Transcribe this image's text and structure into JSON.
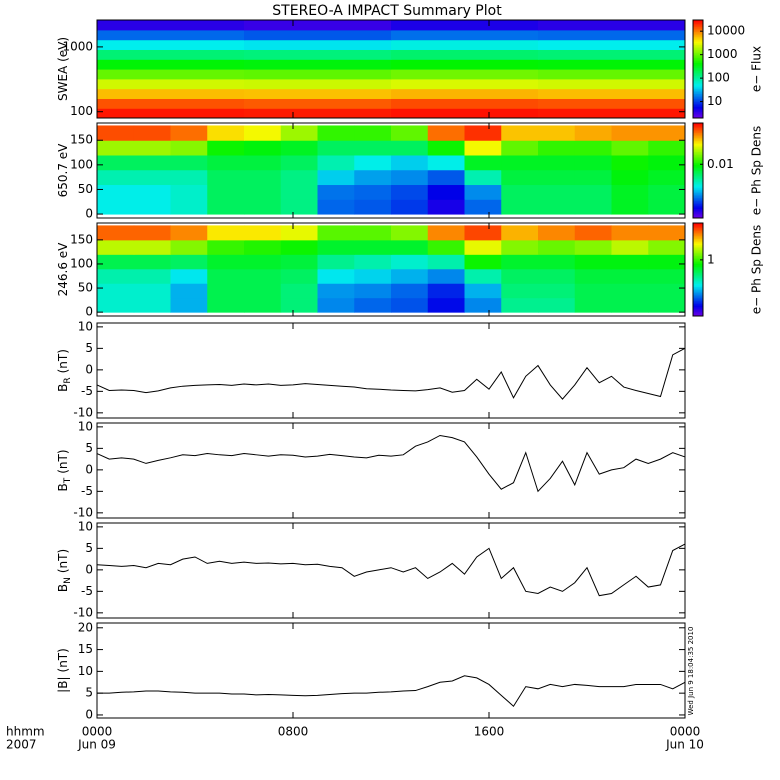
{
  "title": "STEREO-A IMPACT Summary Plot",
  "chart_data": [
    {
      "type": "heatmap",
      "ylabel": "SWEA (eV)",
      "log_y": true,
      "ylim": [
        80,
        2600
      ],
      "yticks": [
        100,
        1000
      ],
      "xlim": [
        0,
        24
      ],
      "xticks": [
        0,
        8,
        16,
        24
      ],
      "x_bins": [
        0,
        6,
        12,
        18,
        24
      ],
      "y_bins": [
        80,
        113,
        160,
        227,
        321,
        455,
        644,
        912,
        1290,
        1830,
        2600
      ],
      "z": [
        [
          25000,
          24000,
          26000,
          25000
        ],
        [
          15000,
          14000,
          16000,
          15000
        ],
        [
          6000,
          5800,
          6500,
          6000
        ],
        [
          2500,
          2400,
          2700,
          2500
        ],
        [
          1000,
          950,
          1100,
          1000
        ],
        [
          400,
          380,
          420,
          400
        ],
        [
          150,
          140,
          160,
          150
        ],
        [
          50,
          45,
          55,
          50
        ],
        [
          15,
          13,
          16,
          15
        ],
        [
          4,
          3.5,
          4.5,
          4
        ]
      ],
      "zlim": [
        2,
        30000
      ],
      "zticks": [
        10,
        100,
        1000,
        10000
      ],
      "log_z": true,
      "colormap": "rainbow",
      "colorbar_label": "e− Flux"
    },
    {
      "type": "heatmap",
      "ylabel": "650.7 eV",
      "log_y": false,
      "ylim": [
        -8,
        185
      ],
      "yticks": [
        0,
        50,
        100,
        150
      ],
      "xlim": [
        0,
        24
      ],
      "xticks": [
        0,
        8,
        16,
        24
      ],
      "x_bins": [
        0,
        1.5,
        3,
        4.5,
        6,
        7.5,
        9,
        10.5,
        12,
        13.5,
        15,
        16.5,
        18,
        19.5,
        21,
        22.5,
        24
      ],
      "y_bins": [
        0,
        30,
        60,
        90,
        120,
        150,
        180
      ],
      "z": [
        [
          0.003,
          0.003,
          0.0035,
          0.006,
          0.006,
          0.005,
          0.0015,
          0.0014,
          0.0012,
          0.0008,
          0.0015,
          0.006,
          0.006,
          0.006,
          0.008,
          0.007
        ],
        [
          0.003,
          0.003,
          0.0035,
          0.006,
          0.006,
          0.005,
          0.0016,
          0.0015,
          0.0013,
          0.0009,
          0.0018,
          0.006,
          0.006,
          0.006,
          0.008,
          0.007
        ],
        [
          0.004,
          0.004,
          0.004,
          0.006,
          0.006,
          0.005,
          0.0025,
          0.002,
          0.0018,
          0.0014,
          0.004,
          0.007,
          0.007,
          0.007,
          0.009,
          0.008
        ],
        [
          0.006,
          0.006,
          0.006,
          0.007,
          0.007,
          0.006,
          0.004,
          0.003,
          0.0025,
          0.003,
          0.008,
          0.008,
          0.008,
          0.008,
          0.01,
          0.009
        ],
        [
          0.02,
          0.02,
          0.018,
          0.01,
          0.009,
          0.008,
          0.006,
          0.006,
          0.006,
          0.01,
          0.03,
          0.015,
          0.012,
          0.012,
          0.015,
          0.012
        ],
        [
          0.07,
          0.07,
          0.06,
          0.035,
          0.03,
          0.02,
          0.012,
          0.012,
          0.015,
          0.06,
          0.08,
          0.04,
          0.04,
          0.045,
          0.05,
          0.05
        ]
      ],
      "zlim": [
        0.0005,
        0.1
      ],
      "zticks": [
        0.01
      ],
      "log_z": true,
      "colormap": "rainbow",
      "colorbar_label": "e− Ph Sp Dens"
    },
    {
      "type": "heatmap",
      "ylabel": "246.6 eV",
      "log_y": false,
      "ylim": [
        -8,
        185
      ],
      "yticks": [
        0,
        50,
        100,
        150
      ],
      "xlim": [
        0,
        24
      ],
      "xticks": [
        0,
        8,
        16,
        24
      ],
      "x_bins": [
        0,
        1.5,
        3,
        4.5,
        6,
        7.5,
        9,
        10.5,
        12,
        13.5,
        15,
        16.5,
        18,
        19.5,
        21,
        22.5,
        24
      ],
      "y_bins": [
        0,
        30,
        60,
        90,
        120,
        150,
        180
      ],
      "z": [
        [
          0.25,
          0.25,
          0.15,
          0.5,
          0.5,
          0.4,
          0.12,
          0.1,
          0.09,
          0.06,
          0.12,
          0.35,
          0.35,
          0.5,
          0.5,
          0.5
        ],
        [
          0.25,
          0.25,
          0.15,
          0.5,
          0.5,
          0.4,
          0.13,
          0.12,
          0.1,
          0.07,
          0.15,
          0.4,
          0.4,
          0.5,
          0.5,
          0.5
        ],
        [
          0.3,
          0.3,
          0.2,
          0.5,
          0.5,
          0.45,
          0.2,
          0.18,
          0.15,
          0.12,
          0.3,
          0.45,
          0.45,
          0.55,
          0.55,
          0.55
        ],
        [
          0.5,
          0.5,
          0.45,
          0.6,
          0.6,
          0.55,
          0.35,
          0.3,
          0.25,
          0.3,
          0.8,
          0.6,
          0.6,
          0.7,
          0.7,
          0.7
        ],
        [
          2,
          2,
          1.5,
          1,
          0.9,
          0.8,
          0.6,
          0.6,
          0.6,
          1,
          2.5,
          1.5,
          1.3,
          1.5,
          2,
          1.5
        ],
        [
          6,
          6,
          5,
          3,
          3,
          2.5,
          1.2,
          1.2,
          1.5,
          5,
          7,
          4,
          5,
          6,
          5,
          5
        ]
      ],
      "zlim": [
        0.03,
        10
      ],
      "zticks": [
        1
      ],
      "log_z": true,
      "colormap": "rainbow",
      "colorbar_label": "e− Ph Sp Dens"
    },
    {
      "type": "line",
      "ylabel": "B",
      "ylabel_sub": "R",
      "ylabel_unit": "(nT)",
      "color": "#000000",
      "ylim": [
        -11.2,
        10.9
      ],
      "yticks": [
        -10,
        -5,
        0,
        5,
        10
      ],
      "xlim": [
        0,
        24
      ],
      "xticks": [
        0,
        8,
        16,
        24
      ],
      "x": [
        0,
        0.5,
        1,
        1.5,
        2,
        2.5,
        3,
        3.5,
        4,
        4.5,
        5,
        5.5,
        6,
        6.5,
        7,
        7.5,
        8,
        8.5,
        9,
        9.5,
        10,
        10.5,
        11,
        11.5,
        12,
        12.5,
        13,
        13.5,
        14,
        14.5,
        15,
        15.5,
        16,
        16.5,
        17,
        17.5,
        18,
        18.5,
        19,
        19.5,
        20,
        20.5,
        21,
        21.5,
        22,
        22.5,
        23,
        23.5,
        24
      ],
      "values": [
        -3.5,
        -4.8,
        -4.7,
        -4.8,
        -5.3,
        -4.9,
        -4.2,
        -3.8,
        -3.6,
        -3.5,
        -3.4,
        -3.6,
        -3.3,
        -3.5,
        -3.3,
        -3.6,
        -3.5,
        -3.2,
        -3.4,
        -3.6,
        -3.8,
        -4,
        -4.4,
        -4.5,
        -4.7,
        -4.8,
        -4.9,
        -4.6,
        -4.2,
        -5.2,
        -4.8,
        -2.2,
        -4.5,
        -0.5,
        -6.5,
        -1.5,
        1,
        -3.5,
        -6.8,
        -3.5,
        0.5,
        -3,
        -1.5,
        -4,
        -4.8,
        -5.5,
        -6.2,
        3.5,
        5
      ]
    },
    {
      "type": "line",
      "ylabel": "B",
      "ylabel_sub": "T",
      "ylabel_unit": "(nT)",
      "color": "#000000",
      "ylim": [
        -11.2,
        10.9
      ],
      "yticks": [
        -10,
        -5,
        0,
        5,
        10
      ],
      "xlim": [
        0,
        24
      ],
      "xticks": [
        0,
        8,
        16,
        24
      ],
      "x": [
        0,
        0.5,
        1,
        1.5,
        2,
        2.5,
        3,
        3.5,
        4,
        4.5,
        5,
        5.5,
        6,
        6.5,
        7,
        7.5,
        8,
        8.5,
        9,
        9.5,
        10,
        10.5,
        11,
        11.5,
        12,
        12.5,
        13,
        13.5,
        14,
        14.5,
        15,
        15.5,
        16,
        16.5,
        17,
        17.5,
        18,
        18.5,
        19,
        19.5,
        20,
        20.5,
        21,
        21.5,
        22,
        22.5,
        23,
        23.5,
        24
      ],
      "values": [
        3.8,
        2.5,
        2.8,
        2.5,
        1.5,
        2.2,
        2.8,
        3.5,
        3.3,
        3.8,
        3.5,
        3.3,
        3.8,
        3.5,
        3.2,
        3.5,
        3.4,
        3,
        3.2,
        3.6,
        3.3,
        3,
        2.8,
        3.4,
        3.2,
        3.5,
        5.5,
        6.5,
        8,
        7.5,
        6.5,
        3,
        -1,
        -4.5,
        -3,
        4,
        -5,
        -2,
        2,
        -3.5,
        4,
        -1,
        0,
        0.5,
        2.5,
        1.5,
        2.5,
        4,
        3
      ]
    },
    {
      "type": "line",
      "ylabel": "B",
      "ylabel_sub": "N",
      "ylabel_unit": "(nT)",
      "color": "#000000",
      "ylim": [
        -11.2,
        10.9
      ],
      "yticks": [
        -10,
        -5,
        0,
        5,
        10
      ],
      "xlim": [
        0,
        24
      ],
      "xticks": [
        0,
        8,
        16,
        24
      ],
      "x": [
        0,
        0.5,
        1,
        1.5,
        2,
        2.5,
        3,
        3.5,
        4,
        4.5,
        5,
        5.5,
        6,
        6.5,
        7,
        7.5,
        8,
        8.5,
        9,
        9.5,
        10,
        10.5,
        11,
        11.5,
        12,
        12.5,
        13,
        13.5,
        14,
        14.5,
        15,
        15.5,
        16,
        16.5,
        17,
        17.5,
        18,
        18.5,
        19,
        19.5,
        20,
        20.5,
        21,
        21.5,
        22,
        22.5,
        23,
        23.5,
        24
      ],
      "values": [
        1.2,
        1,
        0.8,
        1,
        0.5,
        1.5,
        1.2,
        2.5,
        3,
        1.5,
        2,
        1.5,
        1.8,
        1.5,
        1.6,
        1.4,
        1.5,
        1.2,
        1.3,
        0.8,
        0.5,
        -1.5,
        -0.5,
        0,
        0.5,
        -0.5,
        0.5,
        -2,
        -0.5,
        1.5,
        -1,
        3,
        5,
        -2,
        0.5,
        -5,
        -5.5,
        -4,
        -5,
        -3,
        0.5,
        -6,
        -5.5,
        -3.5,
        -1.5,
        -4,
        -3.5,
        4.5,
        6
      ]
    },
    {
      "type": "line",
      "ylabel": "|B|",
      "ylabel_unit": "(nT)",
      "color": "#000000",
      "ylim": [
        -0.7,
        21.1
      ],
      "yticks": [
        0,
        5,
        10,
        15,
        20
      ],
      "xlim": [
        0,
        24
      ],
      "xticks": [
        {
          "value": 0,
          "label": "0000"
        },
        {
          "value": 8,
          "label": "0800"
        },
        {
          "value": 16,
          "label": "1600"
        },
        {
          "value": 24,
          "label": "0000"
        }
      ],
      "x_dates": [
        {
          "value": 0,
          "label": "Jun 09"
        },
        {
          "value": 24,
          "label": "Jun 10"
        }
      ],
      "xlabel": "hhmm",
      "year": "2007",
      "timestamp": "Wed Jun 9 18:04:35 2010",
      "x": [
        0,
        0.5,
        1,
        1.5,
        2,
        2.5,
        3,
        3.5,
        4,
        4.5,
        5,
        5.5,
        6,
        6.5,
        7,
        7.5,
        8,
        8.5,
        9,
        9.5,
        10,
        10.5,
        11,
        11.5,
        12,
        12.5,
        13,
        13.5,
        14,
        14.5,
        15,
        15.5,
        16,
        16.5,
        17,
        17.5,
        18,
        18.5,
        19,
        19.5,
        20,
        20.5,
        21,
        21.5,
        22,
        22.5,
        23,
        23.5,
        24
      ],
      "values": [
        5,
        5,
        5.2,
        5.3,
        5.5,
        5.5,
        5.3,
        5.2,
        5,
        5,
        5,
        4.8,
        4.8,
        4.6,
        4.7,
        4.6,
        4.5,
        4.4,
        4.5,
        4.7,
        4.9,
        5,
        5,
        5.2,
        5.3,
        5.5,
        5.6,
        6.5,
        7.5,
        7.8,
        9,
        8.5,
        7,
        4.5,
        2,
        6.5,
        6,
        7,
        6.5,
        7,
        6.8,
        6.5,
        6.5,
        6.5,
        7,
        7,
        7,
        6,
        7.5
      ]
    }
  ]
}
